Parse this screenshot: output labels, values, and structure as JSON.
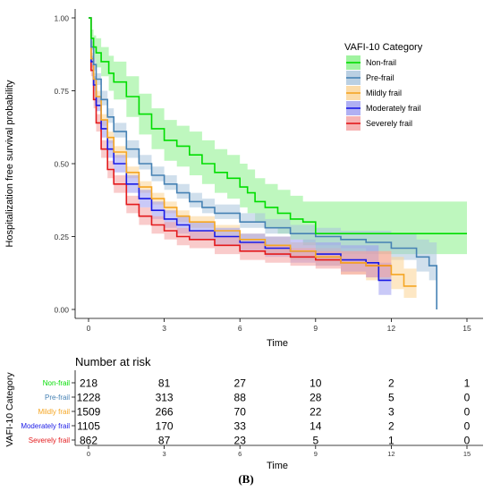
{
  "caption": "(B)",
  "chart_data": {
    "type": "line",
    "subtype": "kaplan-meier",
    "xlabel": "Time",
    "ylabel": "Hospitalization free survival probability",
    "xlim": [
      0,
      15
    ],
    "ylim": [
      0,
      1
    ],
    "xticks": [
      "0",
      "3",
      "6",
      "9",
      "12",
      "15"
    ],
    "yticks": [
      "0.00",
      "0.25",
      "0.50",
      "0.75",
      "1.00"
    ],
    "grid": false,
    "legend": {
      "title": "VAFI-10 Category",
      "position": "top-right"
    },
    "series": [
      {
        "name": "Non-frail",
        "color": "#00dd00",
        "band": "#88f088",
        "x": [
          0,
          0.1,
          0.2,
          0.3,
          0.5,
          0.8,
          1.0,
          1.5,
          2.0,
          2.5,
          3.0,
          3.5,
          4.0,
          4.5,
          5.0,
          5.5,
          6.0,
          6.3,
          6.6,
          7.0,
          7.5,
          8.0,
          8.5,
          9.0,
          15.0
        ],
        "y": [
          1.0,
          0.93,
          0.9,
          0.88,
          0.85,
          0.81,
          0.78,
          0.73,
          0.67,
          0.62,
          0.58,
          0.56,
          0.53,
          0.5,
          0.47,
          0.45,
          0.42,
          0.4,
          0.37,
          0.35,
          0.33,
          0.31,
          0.3,
          0.26,
          0.26
        ],
        "lower": [
          1.0,
          0.9,
          0.86,
          0.83,
          0.8,
          0.75,
          0.72,
          0.66,
          0.6,
          0.55,
          0.51,
          0.49,
          0.46,
          0.43,
          0.4,
          0.38,
          0.35,
          0.33,
          0.3,
          0.28,
          0.26,
          0.24,
          0.22,
          0.19,
          0.19
        ],
        "upper": [
          1.0,
          0.96,
          0.94,
          0.93,
          0.9,
          0.87,
          0.85,
          0.8,
          0.74,
          0.69,
          0.65,
          0.63,
          0.61,
          0.58,
          0.55,
          0.53,
          0.5,
          0.48,
          0.45,
          0.43,
          0.41,
          0.39,
          0.37,
          0.37,
          0.37
        ]
      },
      {
        "name": "Pre-frail",
        "color": "#4682b4",
        "band": "#a9c4dc",
        "x": [
          0,
          0.1,
          0.2,
          0.3,
          0.5,
          0.75,
          1.0,
          1.5,
          2.0,
          2.5,
          3.0,
          3.5,
          4.0,
          4.5,
          5.0,
          6.0,
          7.0,
          8.0,
          9.0,
          10.0,
          11.0,
          12.0,
          13.0,
          13.5,
          13.8,
          13.8
        ],
        "y": [
          1.0,
          0.9,
          0.84,
          0.79,
          0.72,
          0.66,
          0.61,
          0.55,
          0.5,
          0.46,
          0.43,
          0.4,
          0.37,
          0.35,
          0.33,
          0.3,
          0.28,
          0.26,
          0.25,
          0.24,
          0.23,
          0.21,
          0.18,
          0.15,
          0.15,
          0.0
        ],
        "lower": [
          1.0,
          0.89,
          0.82,
          0.77,
          0.7,
          0.64,
          0.59,
          0.52,
          0.48,
          0.44,
          0.41,
          0.38,
          0.35,
          0.33,
          0.31,
          0.28,
          0.26,
          0.24,
          0.22,
          0.21,
          0.19,
          0.17,
          0.13,
          0.1,
          0.1,
          0.0
        ],
        "upper": [
          1.0,
          0.92,
          0.86,
          0.81,
          0.75,
          0.69,
          0.64,
          0.58,
          0.53,
          0.49,
          0.46,
          0.43,
          0.4,
          0.38,
          0.36,
          0.33,
          0.31,
          0.29,
          0.28,
          0.27,
          0.27,
          0.26,
          0.24,
          0.23,
          0.23,
          0.23
        ]
      },
      {
        "name": "Mildly frail",
        "color": "#f5a623",
        "band": "#fbd394",
        "x": [
          0,
          0.1,
          0.2,
          0.3,
          0.5,
          0.75,
          1.0,
          1.5,
          2.0,
          2.5,
          3.0,
          3.5,
          4.0,
          5.0,
          6.0,
          7.0,
          8.0,
          9.0,
          10.0,
          11.0,
          12.0,
          12.5,
          13.0
        ],
        "y": [
          1.0,
          0.86,
          0.79,
          0.73,
          0.65,
          0.59,
          0.54,
          0.47,
          0.42,
          0.38,
          0.35,
          0.32,
          0.3,
          0.27,
          0.24,
          0.22,
          0.2,
          0.18,
          0.16,
          0.15,
          0.12,
          0.08,
          0.08
        ],
        "lower": [
          1.0,
          0.85,
          0.77,
          0.71,
          0.63,
          0.57,
          0.52,
          0.45,
          0.4,
          0.36,
          0.33,
          0.3,
          0.28,
          0.25,
          0.22,
          0.19,
          0.17,
          0.15,
          0.12,
          0.1,
          0.07,
          0.04,
          0.04
        ],
        "upper": [
          1.0,
          0.88,
          0.81,
          0.75,
          0.67,
          0.61,
          0.56,
          0.49,
          0.44,
          0.4,
          0.37,
          0.34,
          0.32,
          0.29,
          0.26,
          0.25,
          0.23,
          0.21,
          0.2,
          0.2,
          0.18,
          0.14,
          0.14
        ]
      },
      {
        "name": "Moderately frail",
        "color": "#1a1ae6",
        "band": "#9c9cf0",
        "x": [
          0,
          0.1,
          0.2,
          0.3,
          0.5,
          0.75,
          1.0,
          1.5,
          2.0,
          2.5,
          3.0,
          3.5,
          4.0,
          5.0,
          6.0,
          7.0,
          8.0,
          9.0,
          10.0,
          11.0,
          11.5,
          12.0
        ],
        "y": [
          1.0,
          0.85,
          0.77,
          0.7,
          0.62,
          0.55,
          0.5,
          0.43,
          0.38,
          0.34,
          0.31,
          0.29,
          0.27,
          0.25,
          0.23,
          0.21,
          0.2,
          0.19,
          0.17,
          0.16,
          0.1,
          0.1
        ],
        "lower": [
          1.0,
          0.83,
          0.75,
          0.68,
          0.59,
          0.52,
          0.47,
          0.4,
          0.35,
          0.31,
          0.28,
          0.26,
          0.24,
          0.22,
          0.2,
          0.18,
          0.16,
          0.15,
          0.13,
          0.11,
          0.05,
          0.05
        ],
        "upper": [
          1.0,
          0.87,
          0.8,
          0.73,
          0.65,
          0.58,
          0.53,
          0.46,
          0.41,
          0.37,
          0.34,
          0.32,
          0.3,
          0.28,
          0.26,
          0.25,
          0.24,
          0.23,
          0.22,
          0.22,
          0.16,
          0.16
        ]
      },
      {
        "name": "Severely frail",
        "color": "#e31a1c",
        "band": "#f4a0a0",
        "x": [
          0,
          0.1,
          0.2,
          0.3,
          0.5,
          0.75,
          1.0,
          1.5,
          2.0,
          2.5,
          3.0,
          3.5,
          4.0,
          5.0,
          6.0,
          7.0,
          8.0,
          9.0,
          10.0,
          11.0,
          12.0
        ],
        "y": [
          1.0,
          0.82,
          0.72,
          0.64,
          0.55,
          0.48,
          0.43,
          0.36,
          0.32,
          0.29,
          0.27,
          0.25,
          0.24,
          0.22,
          0.2,
          0.19,
          0.18,
          0.17,
          0.16,
          0.15,
          0.15
        ],
        "lower": [
          1.0,
          0.8,
          0.69,
          0.61,
          0.52,
          0.45,
          0.4,
          0.33,
          0.29,
          0.26,
          0.24,
          0.22,
          0.21,
          0.19,
          0.17,
          0.16,
          0.15,
          0.14,
          0.12,
          0.11,
          0.11
        ],
        "upper": [
          1.0,
          0.84,
          0.75,
          0.67,
          0.58,
          0.51,
          0.46,
          0.39,
          0.35,
          0.32,
          0.3,
          0.28,
          0.27,
          0.25,
          0.23,
          0.22,
          0.21,
          0.2,
          0.2,
          0.2,
          0.2
        ]
      }
    ],
    "risk_table": {
      "title": "Number at risk",
      "ylabel": "VAFI-10 Category",
      "xlabel": "Time",
      "times": [
        0,
        3,
        6,
        9,
        12,
        15
      ],
      "rows": [
        {
          "name": "Non-frail",
          "color": "#00dd00",
          "values": [
            218,
            81,
            27,
            10,
            2,
            1
          ]
        },
        {
          "name": "Pre-frail",
          "color": "#4682b4",
          "values": [
            1228,
            313,
            88,
            28,
            5,
            0
          ]
        },
        {
          "name": "Mildly frail",
          "color": "#f5a623",
          "values": [
            1509,
            266,
            70,
            22,
            3,
            0
          ]
        },
        {
          "name": "Moderately frail",
          "color": "#1a1ae6",
          "values": [
            1105,
            170,
            33,
            14,
            2,
            0
          ]
        },
        {
          "name": "Severely frail",
          "color": "#e31a1c",
          "values": [
            862,
            87,
            23,
            5,
            1,
            0
          ]
        }
      ]
    }
  }
}
